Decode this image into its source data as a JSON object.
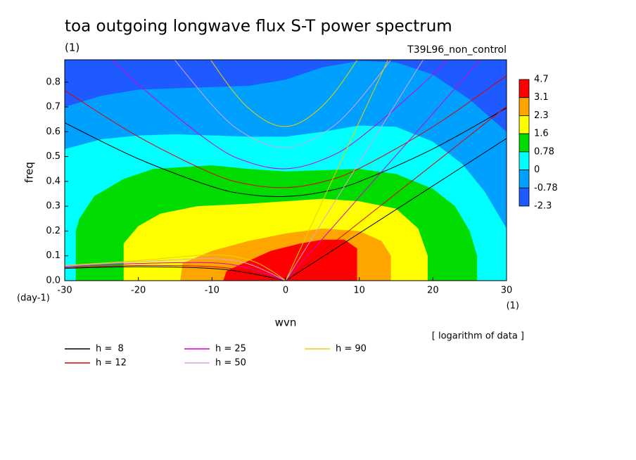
{
  "chart_data": {
    "type": "contour",
    "title": "toa outgoing longwave flux S-T power spectrum",
    "subtitle": "(1)",
    "run_label": "T39L96_non_control",
    "x_label": "wvn",
    "y_label": "freq",
    "x_unit": "(1)",
    "y_unit": "(day-1)",
    "note": "[ logarithm of data ]",
    "xlim": [
      -30,
      30
    ],
    "ylim": [
      0,
      0.89
    ],
    "xticks": [
      -30,
      -20,
      -10,
      0,
      10,
      20,
      30
    ],
    "yticks": [
      {
        "value": 0,
        "label": "0.0"
      },
      0.1,
      0.2,
      0.3,
      0.4,
      0.5,
      0.6,
      0.7,
      0.8
    ],
    "levels": [
      4.7,
      3.1,
      2.3,
      1.6,
      0.78,
      0,
      -0.78,
      -2.3
    ],
    "colors": [
      "#ff0000",
      "#ffa500",
      "#ffff00",
      "#00dc00",
      "#00ffff",
      "#00a0ff",
      "#1e5aff"
    ],
    "regions": [
      {
        "x": [
          -8.5,
          -8,
          -5,
          -2,
          2,
          5,
          8,
          9.7,
          9.7
        ],
        "y": [
          0,
          0.04,
          0.08,
          0.12,
          0.15,
          0.165,
          0.165,
          0.13,
          0
        ]
      },
      {
        "x": [
          -14.3,
          -14,
          -10,
          -5,
          0,
          5,
          10,
          13,
          14.3,
          14.3
        ],
        "y": [
          0,
          0.07,
          0.12,
          0.16,
          0.19,
          0.21,
          0.2,
          0.16,
          0.1,
          0
        ]
      },
      {
        "x": [
          -22,
          -22,
          -20,
          -17,
          -12,
          -5,
          0,
          5,
          10,
          15,
          18,
          19.3,
          19.3
        ],
        "y": [
          0,
          0.15,
          0.22,
          0.27,
          0.3,
          0.31,
          0.32,
          0.33,
          0.32,
          0.29,
          0.21,
          0.1,
          0
        ]
      },
      {
        "x": [
          -28.5,
          -28.5,
          -28,
          -26,
          -22,
          -18,
          -10,
          -5,
          0,
          5,
          10,
          15,
          20,
          23,
          25,
          26,
          26
        ],
        "y": [
          0,
          0.2,
          0.25,
          0.34,
          0.41,
          0.45,
          0.465,
          0.45,
          0.44,
          0.445,
          0.45,
          0.43,
          0.37,
          0.3,
          0.2,
          0.1,
          0
        ]
      },
      {
        "x": [
          -30,
          -30,
          -25,
          -20,
          -15,
          -10,
          -5,
          0,
          5,
          10,
          15,
          20,
          24,
          27,
          30,
          30
        ],
        "y": [
          0,
          0.53,
          0.57,
          0.585,
          0.59,
          0.585,
          0.58,
          0.58,
          0.6,
          0.625,
          0.62,
          0.56,
          0.47,
          0.36,
          0.21,
          0
        ]
      },
      {
        "x": [
          -30,
          -30,
          -25,
          -20,
          -10,
          -5,
          0,
          5,
          10,
          15,
          20,
          25,
          30,
          30
        ],
        "y": [
          0,
          0.7,
          0.745,
          0.77,
          0.78,
          0.785,
          0.81,
          0.86,
          0.885,
          0.88,
          0.83,
          0.73,
          0.6,
          0
        ]
      },
      {
        "x": [
          -30,
          -30,
          30,
          30
        ],
        "y": [
          0,
          0.89,
          0.89,
          0
        ]
      }
    ],
    "series": [
      {
        "name": "h =  8",
        "color": "#000000",
        "curves": [
          {
            "x": [
              -30,
              -20,
              -10,
              -5,
              0,
              5,
              10,
              20,
              30
            ],
            "values": [
              0.636,
              0.491,
              0.379,
              0.347,
              0.339,
              0.357,
              0.399,
              0.531,
              0.696
            ]
          },
          {
            "x": [
              0,
              30
            ],
            "values": [
              0,
              0.573
            ]
          },
          {
            "x": [
              -30,
              -20,
              -10,
              -5,
              0
            ],
            "values": [
              0.05,
              0.056,
              0.049,
              0.03,
              0
            ]
          }
        ]
      },
      {
        "name": "h = 12",
        "color": "#e00000",
        "curves": [
          {
            "x": [
              -30,
              -20,
              -10,
              -5,
              0,
              5,
              10,
              20,
              30
            ],
            "values": [
              0.766,
              0.58,
              0.432,
              0.388,
              0.375,
              0.398,
              0.452,
              0.62,
              0.826
            ]
          },
          {
            "x": [
              0,
              30
            ],
            "values": [
              0,
              0.702
            ]
          },
          {
            "x": [
              -30,
              -20,
              -10,
              -5,
              0
            ],
            "values": [
              0.052,
              0.061,
              0.056,
              0.036,
              0
            ]
          }
        ]
      },
      {
        "name": "h = 25",
        "color": "#d000d0",
        "curves": [
          {
            "x": [
              -30,
              -20,
              -10,
              -5,
              0,
              5,
              10,
              20,
              30
            ],
            "values": [
              1.077,
              0.791,
              0.553,
              0.477,
              0.451,
              0.487,
              0.573,
              0.831,
              1.137
            ]
          },
          {
            "x": [
              0,
              30
            ],
            "values": [
              0,
              1.01
            ]
          },
          {
            "x": [
              -30,
              -20,
              -10,
              -5,
              0
            ],
            "values": [
              0.056,
              0.069,
              0.072,
              0.05,
              0
            ]
          }
        ]
      },
      {
        "name": "h = 50",
        "color": "#e0a0e0",
        "curves": [
          {
            "x": [
              -20,
              -10,
              -5,
              0,
              5,
              10,
              20
            ],
            "values": [
              1.074,
              0.708,
              0.582,
              0.536,
              0.592,
              0.728,
              1.114
            ]
          },
          {
            "x": [
              0,
              30
            ],
            "values": [
              0,
              1.43
            ]
          },
          {
            "x": [
              -30,
              -20,
              -10,
              -5,
              0
            ],
            "values": [
              0.059,
              0.076,
              0.089,
              0.067,
              0
            ]
          }
        ]
      },
      {
        "name": "h = 90",
        "color": "#e8d000",
        "curves": [
          {
            "x": [
              -15,
              -10,
              -5,
              0,
              5,
              10,
              15
            ],
            "values": [
              1.128,
              0.882,
              0.694,
              0.621,
              0.704,
              0.902,
              1.158
            ]
          },
          {
            "x": [
              0,
              30
            ],
            "values": [
              0,
              1.92
            ]
          },
          {
            "x": [
              -30,
              -20,
              -10,
              -5,
              -2,
              0
            ],
            "values": [
              0.061,
              0.081,
              0.104,
              0.084,
              0.041,
              0
            ]
          }
        ]
      }
    ]
  }
}
